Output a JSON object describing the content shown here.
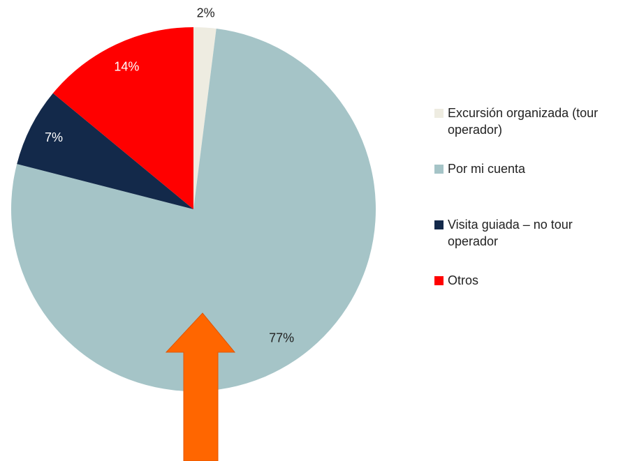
{
  "chart_data": {
    "type": "pie",
    "categories": [
      "Excursión organizada (tour operador)",
      "Por mi cuenta",
      "Visita guiada – no tour operador",
      "Otros"
    ],
    "values": [
      2,
      77,
      7,
      14
    ],
    "value_labels": [
      "2%",
      "77%",
      "7%",
      "14%"
    ],
    "colors": [
      "#eeece1",
      "#a5c4c7",
      "#13294a",
      "#ff0000"
    ],
    "legend": "right"
  }
}
